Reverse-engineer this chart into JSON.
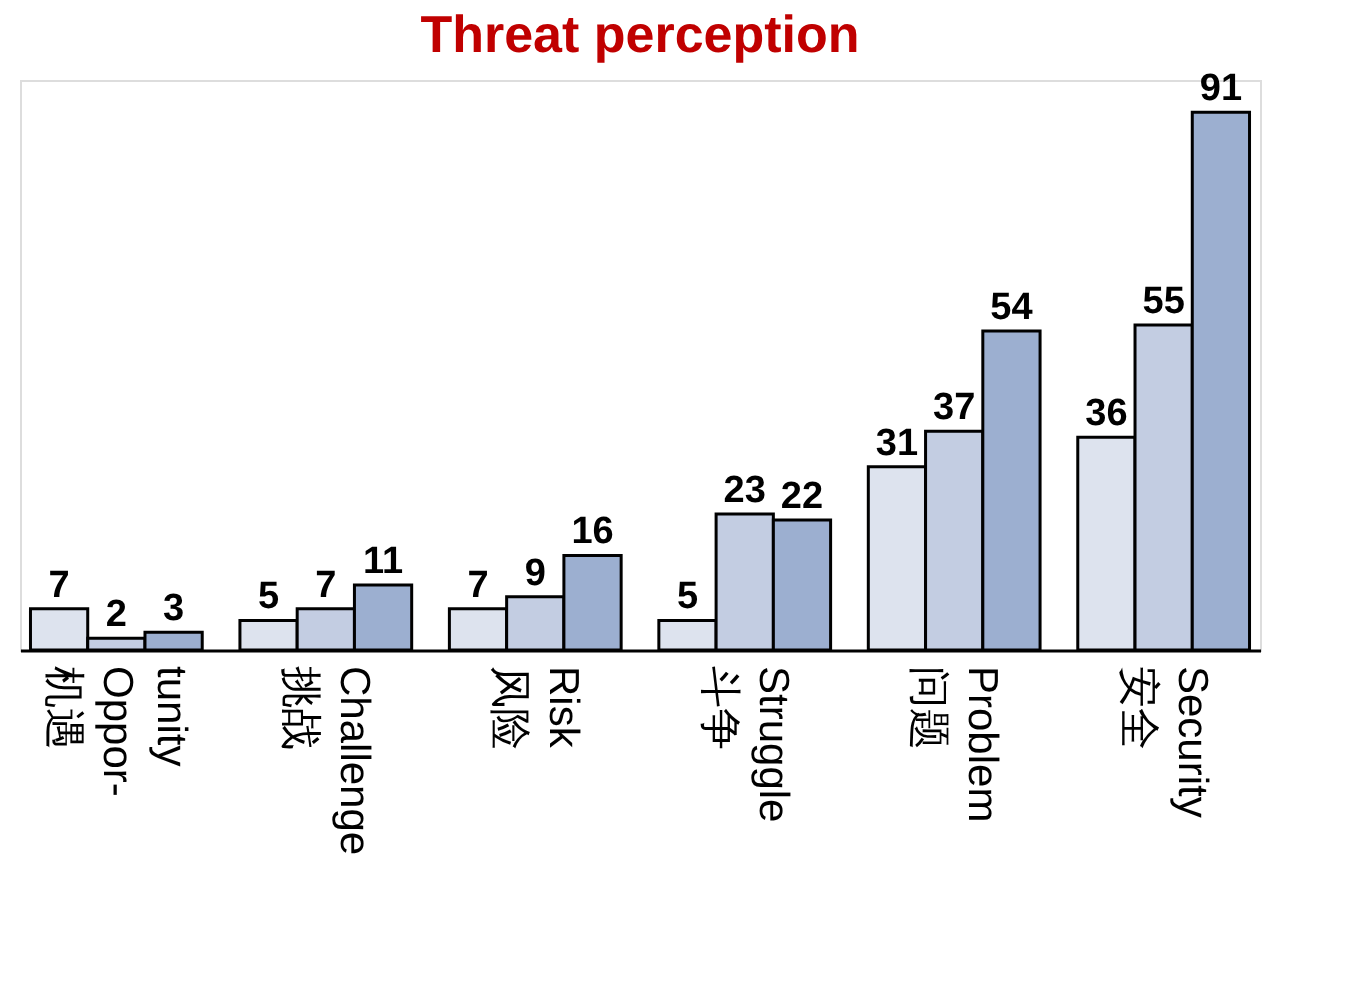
{
  "chart_data": {
    "type": "bar",
    "title": "Threat perception",
    "categories": [
      "机遇\nOppor-\ntunity",
      "挑战\nChallenge",
      "风险\nRisk",
      "斗争\nStruggle",
      "问题\nProblem",
      "安全\nSecurity"
    ],
    "series": [
      {
        "color": "#dde3ee",
        "values": [
          7,
          5,
          7,
          5,
          31,
          36
        ]
      },
      {
        "color": "#c3cde2",
        "values": [
          2,
          7,
          9,
          23,
          37,
          55
        ]
      },
      {
        "color": "#9cafd0",
        "values": [
          3,
          11,
          16,
          22,
          54,
          91
        ]
      }
    ],
    "data_labels": true
  }
}
